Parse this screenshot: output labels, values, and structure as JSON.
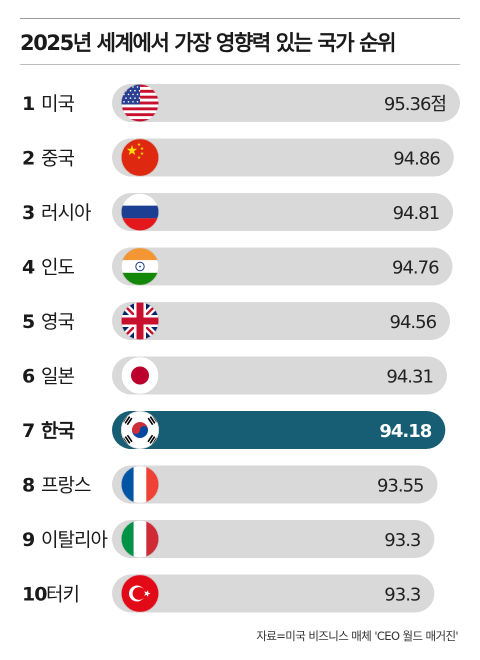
{
  "title": "2025년 세계에서 가장 영향력 있는 국가 순위",
  "source": "자료=미국 비즈니스 매체 'CEO 월드 매거진'",
  "colors": {
    "bar": "#d9d9d9",
    "highlight_bar": "#175e74",
    "text": "#1a1a1a",
    "highlight_text": "#ffffff"
  },
  "chart_data": {
    "type": "bar",
    "orientation": "horizontal",
    "title": "2025년 세계에서 가장 영향력 있는 국가 순위",
    "unit": "점",
    "highlight_rank": 7,
    "categories": [
      "미국",
      "중국",
      "러시아",
      "인도",
      "영국",
      "일본",
      "한국",
      "프랑스",
      "이탈리아",
      "터키"
    ],
    "ranks": [
      1,
      2,
      3,
      4,
      5,
      6,
      7,
      8,
      9,
      10
    ],
    "values": [
      95.36,
      94.86,
      94.81,
      94.76,
      94.56,
      94.31,
      94.18,
      93.55,
      93.3,
      93.3
    ],
    "value_labels": [
      "95.36점",
      "94.86",
      "94.81",
      "94.76",
      "94.56",
      "94.31",
      "94.18",
      "93.55",
      "93.3",
      "93.3"
    ],
    "flags": [
      "us-flag-icon",
      "china-flag-icon",
      "russia-flag-icon",
      "india-flag-icon",
      "uk-flag-icon",
      "japan-flag-icon",
      "korea-flag-icon",
      "france-flag-icon",
      "italy-flag-icon",
      "turkey-flag-icon"
    ]
  }
}
